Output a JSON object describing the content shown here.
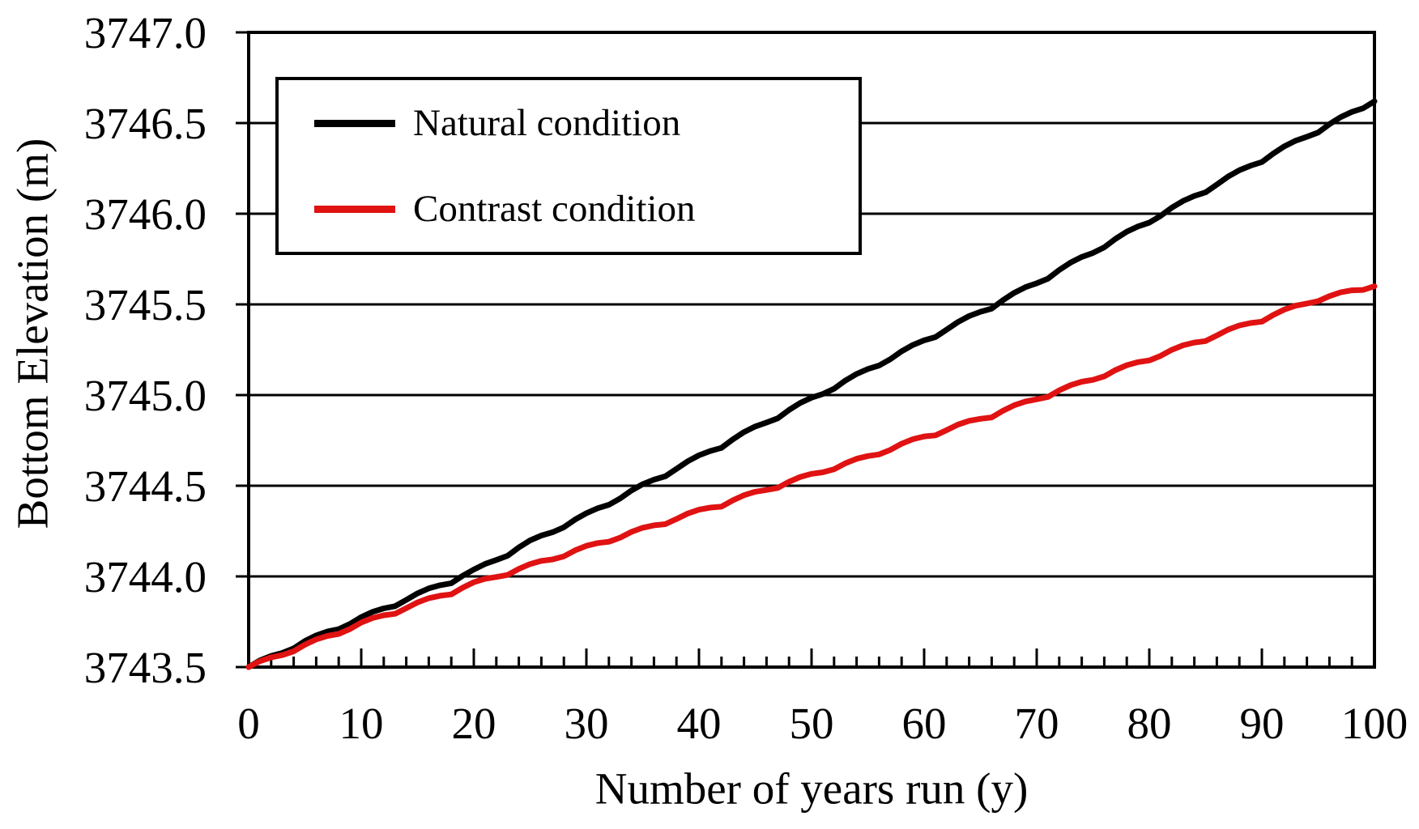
{
  "chart_data": {
    "type": "line",
    "title": "",
    "xlabel": "Number of years run (y)",
    "ylabel": "Bottom Elevation (m)",
    "xlim": [
      0,
      100
    ],
    "ylim": [
      3743.5,
      3747.0
    ],
    "grid": "horizontal",
    "legend_position": "top-left",
    "x_ticks": [
      "0",
      "10",
      "20",
      "30",
      "40",
      "50",
      "60",
      "70",
      "80",
      "90",
      "100"
    ],
    "x_minor_tick_step": 2,
    "y_ticks": [
      "3747.0",
      "3746.5",
      "3746.0",
      "3745.5",
      "3745.0",
      "3744.5",
      "3744.0",
      "3743.5"
    ],
    "colors": {
      "background": "#ffffff",
      "axis": "#000000",
      "grid": "#000000"
    },
    "x": [
      0,
      5,
      10,
      15,
      20,
      25,
      30,
      35,
      40,
      45,
      50,
      55,
      60,
      65,
      70,
      75,
      80,
      85,
      90,
      95,
      100
    ],
    "series": [
      {
        "name": "Natural condition",
        "color": "#000000",
        "values": [
          3743.5,
          3743.64,
          3743.77,
          3743.9,
          3744.03,
          3744.19,
          3744.34,
          3744.5,
          3744.66,
          3744.82,
          3744.98,
          3745.14,
          3745.3,
          3745.46,
          3745.62,
          3745.79,
          3745.96,
          3746.13,
          3746.3,
          3746.46,
          3746.62
        ]
      },
      {
        "name": "Contrast condition",
        "color": "#e01212",
        "values": [
          3743.5,
          3743.62,
          3743.74,
          3743.85,
          3743.96,
          3744.06,
          3744.16,
          3744.26,
          3744.36,
          3744.46,
          3744.56,
          3744.66,
          3744.77,
          3744.87,
          3744.98,
          3745.09,
          3745.2,
          3745.31,
          3745.42,
          3745.53,
          3745.6
        ]
      }
    ]
  }
}
